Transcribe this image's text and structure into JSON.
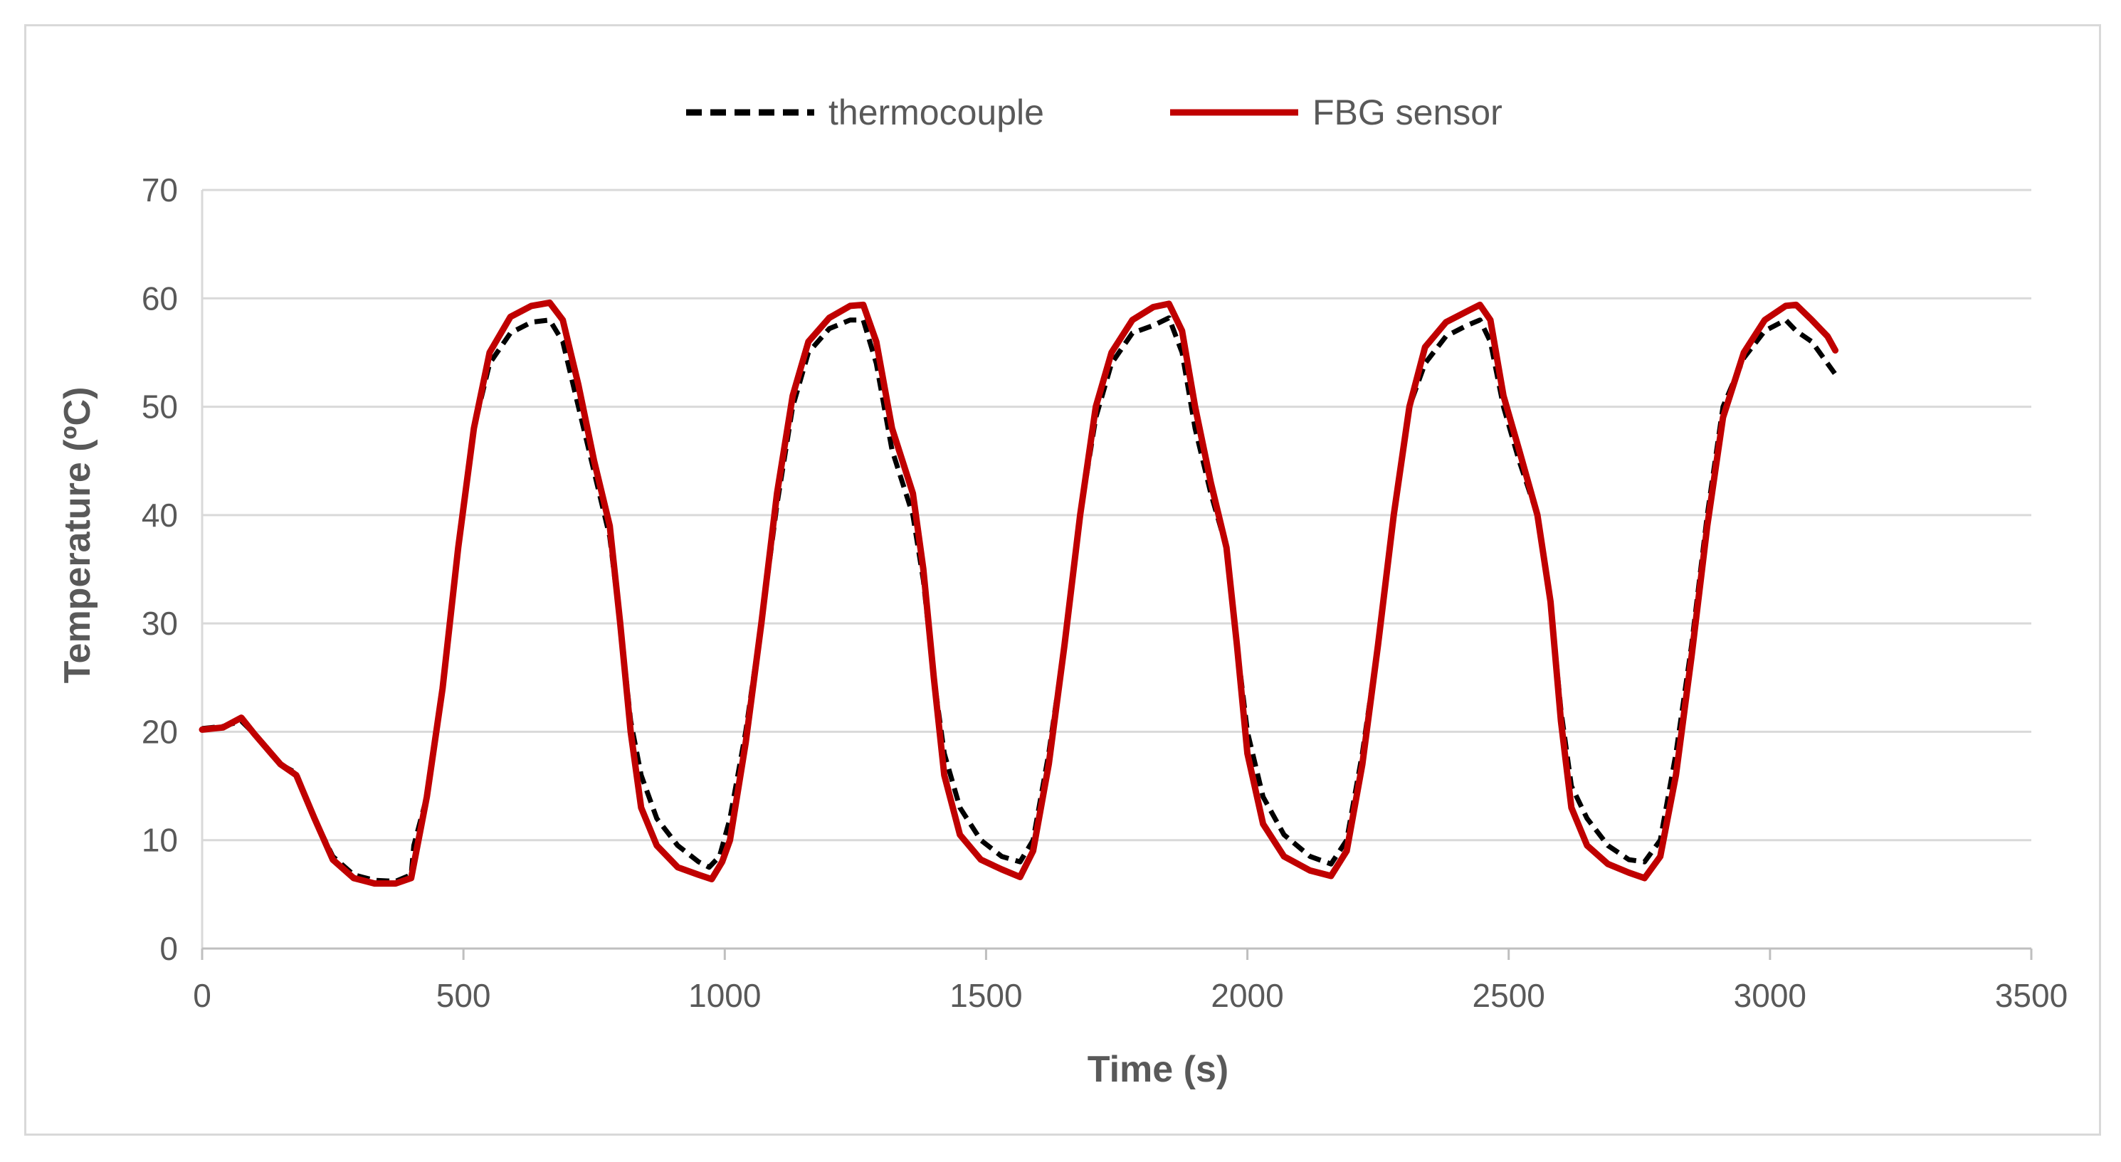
{
  "chart_data": {
    "type": "line",
    "title": "",
    "xlabel": "Time (s)",
    "ylabel": "Temperature (ºC)",
    "xlim": [
      0,
      3500
    ],
    "ylim": [
      0,
      70
    ],
    "x_ticks": [
      "0",
      "500",
      "1000",
      "1500",
      "2000",
      "2500",
      "3000",
      "3500"
    ],
    "y_ticks": [
      "0",
      "10",
      "20",
      "30",
      "40",
      "50",
      "60",
      "70"
    ],
    "grid": "horizontal",
    "legend_position": "top-center",
    "series": [
      {
        "name": "thermocouple",
        "style": "dashed",
        "color": "#000000",
        "points": [
          [
            0,
            20.3
          ],
          [
            40,
            20.5
          ],
          [
            75,
            21.0
          ],
          [
            100,
            19.8
          ],
          [
            150,
            17.0
          ],
          [
            180,
            16.2
          ],
          [
            215,
            12.0
          ],
          [
            250,
            8.5
          ],
          [
            290,
            6.8
          ],
          [
            330,
            6.3
          ],
          [
            370,
            6.2
          ],
          [
            400,
            6.8
          ],
          [
            405,
            9.5
          ],
          [
            430,
            14
          ],
          [
            460,
            24
          ],
          [
            490,
            37
          ],
          [
            520,
            48
          ],
          [
            550,
            54
          ],
          [
            590,
            56.8
          ],
          [
            630,
            57.8
          ],
          [
            665,
            58.0
          ],
          [
            690,
            56
          ],
          [
            720,
            50
          ],
          [
            750,
            44
          ],
          [
            780,
            38
          ],
          [
            800,
            30
          ],
          [
            820,
            21
          ],
          [
            840,
            16
          ],
          [
            870,
            12
          ],
          [
            910,
            9.5
          ],
          [
            950,
            8.0
          ],
          [
            970,
            7.5
          ],
          [
            990,
            8.5
          ],
          [
            1010,
            12
          ],
          [
            1040,
            20
          ],
          [
            1070,
            30
          ],
          [
            1100,
            41
          ],
          [
            1130,
            50
          ],
          [
            1160,
            55
          ],
          [
            1200,
            57.2
          ],
          [
            1240,
            58
          ],
          [
            1265,
            58.0
          ],
          [
            1290,
            54
          ],
          [
            1320,
            46
          ],
          [
            1360,
            40
          ],
          [
            1380,
            34
          ],
          [
            1400,
            25
          ],
          [
            1420,
            18
          ],
          [
            1450,
            13
          ],
          [
            1490,
            10
          ],
          [
            1530,
            8.5
          ],
          [
            1565,
            8.0
          ],
          [
            1590,
            10
          ],
          [
            1620,
            18
          ],
          [
            1650,
            28
          ],
          [
            1680,
            40
          ],
          [
            1710,
            49
          ],
          [
            1740,
            54
          ],
          [
            1780,
            56.8
          ],
          [
            1820,
            57.5
          ],
          [
            1850,
            58.2
          ],
          [
            1875,
            55
          ],
          [
            1900,
            48
          ],
          [
            1930,
            42
          ],
          [
            1960,
            37
          ],
          [
            1980,
            28
          ],
          [
            2000,
            20
          ],
          [
            2030,
            14
          ],
          [
            2070,
            10.5
          ],
          [
            2120,
            8.5
          ],
          [
            2160,
            7.8
          ],
          [
            2190,
            10
          ],
          [
            2220,
            18
          ],
          [
            2250,
            28
          ],
          [
            2280,
            40
          ],
          [
            2310,
            50
          ],
          [
            2340,
            54
          ],
          [
            2380,
            56.5
          ],
          [
            2420,
            57.5
          ],
          [
            2445,
            58.0
          ],
          [
            2465,
            56
          ],
          [
            2490,
            50
          ],
          [
            2520,
            45
          ],
          [
            2555,
            40
          ],
          [
            2580,
            32
          ],
          [
            2600,
            22
          ],
          [
            2620,
            15
          ],
          [
            2650,
            12
          ],
          [
            2690,
            9.5
          ],
          [
            2730,
            8.2
          ],
          [
            2760,
            8.0
          ],
          [
            2790,
            10
          ],
          [
            2820,
            18
          ],
          [
            2850,
            28
          ],
          [
            2880,
            40
          ],
          [
            2910,
            50
          ],
          [
            2950,
            54.5
          ],
          [
            2990,
            57
          ],
          [
            3030,
            58.0
          ],
          [
            3050,
            57
          ],
          [
            3080,
            56
          ],
          [
            3110,
            54
          ],
          [
            3125,
            53
          ]
        ]
      },
      {
        "name": "FBG sensor",
        "style": "solid",
        "color": "#c00000",
        "points": [
          [
            0,
            20.2
          ],
          [
            40,
            20.4
          ],
          [
            75,
            21.3
          ],
          [
            100,
            19.8
          ],
          [
            150,
            17.0
          ],
          [
            180,
            16.0
          ],
          [
            215,
            12.0
          ],
          [
            250,
            8.2
          ],
          [
            290,
            6.5
          ],
          [
            330,
            6.0
          ],
          [
            370,
            6.0
          ],
          [
            400,
            6.5
          ],
          [
            430,
            14
          ],
          [
            460,
            24
          ],
          [
            490,
            37
          ],
          [
            520,
            48
          ],
          [
            550,
            55
          ],
          [
            590,
            58.3
          ],
          [
            630,
            59.3
          ],
          [
            665,
            59.6
          ],
          [
            690,
            58
          ],
          [
            720,
            52
          ],
          [
            750,
            45
          ],
          [
            780,
            39
          ],
          [
            800,
            30
          ],
          [
            820,
            20
          ],
          [
            840,
            13
          ],
          [
            870,
            9.5
          ],
          [
            910,
            7.5
          ],
          [
            950,
            6.8
          ],
          [
            975,
            6.4
          ],
          [
            995,
            8
          ],
          [
            1010,
            10
          ],
          [
            1040,
            19
          ],
          [
            1070,
            30
          ],
          [
            1100,
            42
          ],
          [
            1130,
            51
          ],
          [
            1160,
            56
          ],
          [
            1200,
            58.2
          ],
          [
            1240,
            59.3
          ],
          [
            1265,
            59.4
          ],
          [
            1290,
            56
          ],
          [
            1320,
            48
          ],
          [
            1360,
            42
          ],
          [
            1380,
            35
          ],
          [
            1400,
            25
          ],
          [
            1420,
            16
          ],
          [
            1450,
            10.5
          ],
          [
            1490,
            8.2
          ],
          [
            1530,
            7.3
          ],
          [
            1565,
            6.6
          ],
          [
            1590,
            9
          ],
          [
            1620,
            17
          ],
          [
            1650,
            28
          ],
          [
            1680,
            40
          ],
          [
            1710,
            50
          ],
          [
            1740,
            55
          ],
          [
            1780,
            58
          ],
          [
            1820,
            59.2
          ],
          [
            1850,
            59.5
          ],
          [
            1875,
            57
          ],
          [
            1900,
            50
          ],
          [
            1930,
            43
          ],
          [
            1960,
            37
          ],
          [
            1980,
            28
          ],
          [
            2000,
            18
          ],
          [
            2030,
            11.5
          ],
          [
            2070,
            8.5
          ],
          [
            2120,
            7.2
          ],
          [
            2160,
            6.7
          ],
          [
            2190,
            9
          ],
          [
            2220,
            17
          ],
          [
            2250,
            28
          ],
          [
            2280,
            40
          ],
          [
            2310,
            50
          ],
          [
            2340,
            55.5
          ],
          [
            2380,
            57.8
          ],
          [
            2420,
            58.8
          ],
          [
            2445,
            59.4
          ],
          [
            2465,
            58
          ],
          [
            2490,
            51
          ],
          [
            2520,
            46
          ],
          [
            2555,
            40
          ],
          [
            2580,
            32
          ],
          [
            2600,
            21
          ],
          [
            2620,
            13
          ],
          [
            2650,
            9.5
          ],
          [
            2690,
            7.8
          ],
          [
            2730,
            7.0
          ],
          [
            2760,
            6.5
          ],
          [
            2790,
            8.5
          ],
          [
            2820,
            16
          ],
          [
            2850,
            27
          ],
          [
            2880,
            39
          ],
          [
            2910,
            49
          ],
          [
            2950,
            55
          ],
          [
            2990,
            58
          ],
          [
            3030,
            59.3
          ],
          [
            3050,
            59.4
          ],
          [
            3080,
            58
          ],
          [
            3110,
            56.5
          ],
          [
            3125,
            55.2
          ]
        ]
      }
    ]
  }
}
